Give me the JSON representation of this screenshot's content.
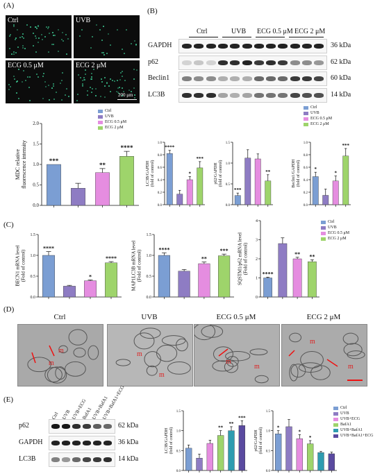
{
  "panels": {
    "A": "(A)",
    "B": "(B)",
    "C": "(C)",
    "D": "(D)",
    "E": "(E)"
  },
  "groups": [
    "Ctrl",
    "UVB",
    "ECG 0.5 μM",
    "ECG 2 μM"
  ],
  "groups_E": [
    "Ctrl",
    "UVB",
    "UVB+ECG",
    "BafA1",
    "UVB+BafA1",
    "UVB+BafA1+ECG"
  ],
  "colors": {
    "ctrl": "#7B9ED3",
    "uvb": "#8E7CC3",
    "ecg05": "#E58DE0",
    "ecg2": "#9ED46B",
    "uvbbaf": "#2E9CB0",
    "uvbbafecg": "#5A4AA0"
  },
  "micrographs": {
    "scale_label": "200 μm"
  },
  "blot_B": {
    "header": [
      "Ctrl",
      "UVB",
      "ECG 0.5 μM",
      "ECG 2 μM"
    ],
    "proteins": [
      "GAPDH",
      "p62",
      "Beclin1",
      "LC3B"
    ],
    "kda": [
      "36 kDa",
      "62 kDa",
      "60 kDa",
      "14 kDa"
    ]
  },
  "blot_E": {
    "proteins": [
      "p62",
      "GAPDH",
      "LC3B"
    ],
    "kda": [
      "62 kDa",
      "36 kDa",
      "14 kDa"
    ]
  },
  "tem": {
    "labels": [
      "Ctrl",
      "UVB",
      "ECG 0.5 μM",
      "ECG 2 μM"
    ],
    "m": "m"
  },
  "chart_data": [
    {
      "id": "mdc",
      "type": "bar",
      "categories": [
        "Ctrl",
        "UVB",
        "ECG 0.5 μM",
        "ECG 2 μM"
      ],
      "values": [
        1.0,
        0.42,
        0.8,
        1.2
      ],
      "errors": [
        0.0,
        0.12,
        0.1,
        0.12
      ],
      "ylabel": "MDC relative\nfluorescence intensity",
      "ylim": [
        0,
        2.0
      ],
      "yticks": [
        "0.0",
        "0.5",
        "1.0",
        "1.5",
        "2.0"
      ],
      "stars": [
        "***",
        "",
        "**",
        "****"
      ]
    },
    {
      "id": "lc3b_B",
      "type": "bar",
      "categories": [
        "Ctrl",
        "UVB",
        "ECG 0.5 μM",
        "ECG 2 μM"
      ],
      "values": [
        0.82,
        0.17,
        0.4,
        0.59
      ],
      "errors": [
        0.05,
        0.06,
        0.05,
        0.1
      ],
      "ylabel": "LC3B/GAPDH\n(fold of control)",
      "ylim": [
        0,
        1.0
      ],
      "yticks": [
        "0.0",
        "0.2",
        "0.4",
        "0.6",
        "0.8",
        "1.0"
      ],
      "stars": [
        "****",
        "",
        "*",
        "***"
      ]
    },
    {
      "id": "p62_B",
      "type": "bar",
      "categories": [
        "Ctrl",
        "UVB",
        "ECG 0.5 μM",
        "ECG 2 μM"
      ],
      "values": [
        0.22,
        1.12,
        1.1,
        0.57
      ],
      "errors": [
        0.06,
        0.2,
        0.12,
        0.15
      ],
      "ylabel": "p62/GAPDH\n(fold of control)",
      "ylim": [
        0,
        1.5
      ],
      "yticks": [
        "0.0",
        "0.5",
        "1.0",
        "1.5"
      ],
      "stars": [
        "***",
        "",
        "",
        "**"
      ]
    },
    {
      "id": "beclin_B",
      "type": "bar",
      "categories": [
        "Ctrl",
        "UVB",
        "ECG 0.5 μM",
        "ECG 2 μM"
      ],
      "values": [
        0.45,
        0.15,
        0.38,
        0.78
      ],
      "errors": [
        0.07,
        0.1,
        0.08,
        0.12
      ],
      "ylabel": "Beclin1/GAPDH\n(fold of control)",
      "ylim": [
        0,
        1.0
      ],
      "yticks": [
        "0.0",
        "0.2",
        "0.4",
        "0.6",
        "0.8",
        "1.0"
      ],
      "stars": [
        "*",
        "",
        "*",
        "***"
      ]
    },
    {
      "id": "becn1_C",
      "type": "bar",
      "categories": [
        "Ctrl",
        "UVB",
        "ECG 0.5 μM",
        "ECG 2 μM"
      ],
      "values": [
        1.0,
        0.26,
        0.39,
        0.82
      ],
      "errors": [
        0.09,
        0.02,
        0.02,
        0.03
      ],
      "ylabel": "BECN1 mRNA level\n(Fold of control)",
      "ylim": [
        0,
        1.5
      ],
      "yticks": [
        "0.0",
        "0.5",
        "1.0",
        "1.5"
      ],
      "stars": [
        "****",
        "",
        "*",
        "****"
      ]
    },
    {
      "id": "map1lc3b_C",
      "type": "bar",
      "categories": [
        "Ctrl",
        "UVB",
        "ECG 0.5 μM",
        "ECG 2 μM"
      ],
      "values": [
        1.0,
        0.62,
        0.8,
        0.99
      ],
      "errors": [
        0.06,
        0.04,
        0.04,
        0.04
      ],
      "ylabel": "MAP1LC3B mRNA level\n(Fold of control)",
      "ylim": [
        0,
        1.5
      ],
      "yticks": [
        "0.0",
        "0.5",
        "1.0",
        "1.5"
      ],
      "stars": [
        "****",
        "",
        "**",
        "***"
      ]
    },
    {
      "id": "sqstm1_C",
      "type": "bar",
      "categories": [
        "Ctrl",
        "UVB",
        "ECG 0.5 μM",
        "ECG 2 μM"
      ],
      "values": [
        1.0,
        2.8,
        2.0,
        1.85
      ],
      "errors": [
        0.04,
        0.3,
        0.08,
        0.1
      ],
      "ylabel": "SQSTM1/p62 mRNA level\n(Fold of control)",
      "ylim": [
        0,
        4
      ],
      "yticks": [
        "0",
        "1",
        "2",
        "3",
        "4"
      ],
      "stars": [
        "****",
        "",
        "**",
        "**"
      ]
    },
    {
      "id": "lc3b_E",
      "type": "bar",
      "categories": [
        "Ctrl",
        "UVB",
        "UVB+ECG",
        "BafA1",
        "UVB+BafA1",
        "UVB+BafA1+ECG"
      ],
      "values": [
        0.56,
        0.31,
        0.68,
        0.88,
        1.0,
        1.13
      ],
      "errors": [
        0.08,
        0.1,
        0.08,
        0.12,
        0.1,
        0.12
      ],
      "ylabel": "LC3B/GAPDH\n(fold of control)",
      "ylim": [
        0,
        1.5
      ],
      "yticks": [
        "0.0",
        "0.5",
        "1.0",
        "1.5"
      ],
      "stars": [
        "",
        "",
        "",
        "**",
        "**",
        "***"
      ]
    },
    {
      "id": "p62_E",
      "type": "bar",
      "categories": [
        "Ctrl",
        "UVB",
        "UVB+ECG",
        "BafA1",
        "UVB+BafA1",
        "UVB+BafA1+ECG"
      ],
      "values": [
        0.92,
        1.1,
        0.8,
        0.67,
        0.45,
        0.42
      ],
      "errors": [
        0.08,
        0.18,
        0.1,
        0.08,
        0.03,
        0.04
      ],
      "ylabel": "p62/GAPDH\n(fold of control)",
      "ylim": [
        0,
        1.5
      ],
      "yticks": [
        "0.0",
        "0.5",
        "1.0",
        "1.5"
      ],
      "stars": [
        "*",
        "",
        "*",
        "*",
        "",
        ""
      ]
    }
  ]
}
